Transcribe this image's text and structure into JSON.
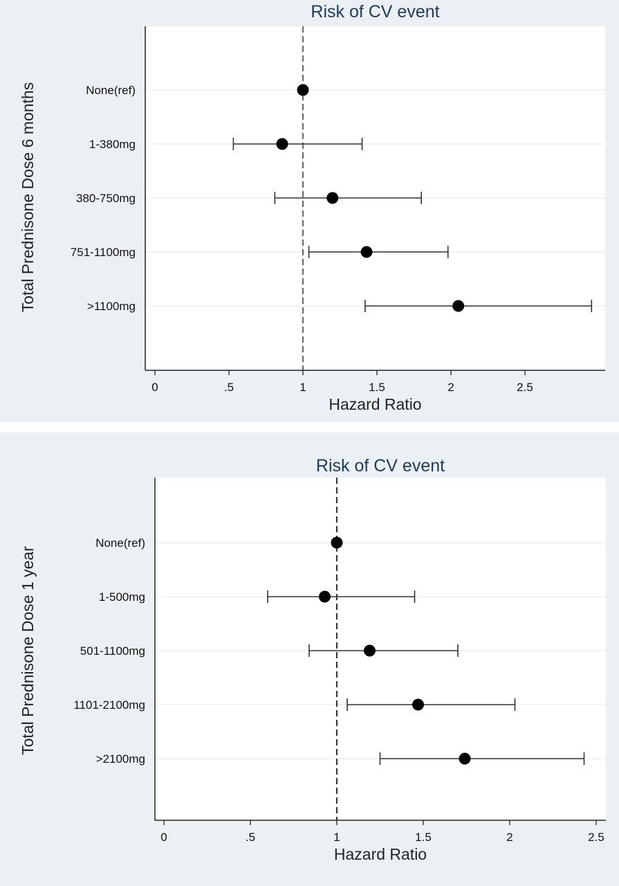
{
  "chart_data": [
    {
      "type": "scatter",
      "subtype": "forest-plot",
      "title": "Risk of CV event",
      "xlabel": "Hazard Ratio",
      "ylabel": "Total Prednisone Dose 6 months",
      "xlim": [
        0,
        3.0
      ],
      "xticks": [
        0,
        0.5,
        1,
        1.5,
        2,
        2.5
      ],
      "xtick_labels": [
        "0",
        ".5",
        "1",
        "1.5",
        "2",
        "2.5"
      ],
      "reference_line": 1,
      "grid": true,
      "categories": [
        "None(ref)",
        "1-380mg",
        "380-750mg",
        "751-1100mg",
        ">1100mg"
      ],
      "estimates": [
        1.0,
        0.86,
        1.2,
        1.43,
        2.05
      ],
      "lower": [
        null,
        0.53,
        0.81,
        1.04,
        1.42
      ],
      "upper": [
        null,
        1.4,
        1.8,
        1.98,
        2.95
      ]
    },
    {
      "type": "scatter",
      "subtype": "forest-plot",
      "title": "Risk of CV event",
      "xlabel": "Hazard Ratio",
      "ylabel": "Total Prednisone Dose 1 year",
      "xlim": [
        0,
        2.5
      ],
      "xticks": [
        0,
        0.5,
        1,
        1.5,
        2,
        2.5
      ],
      "xtick_labels": [
        "0",
        ".5",
        "1",
        "1.5",
        "2",
        "2.5"
      ],
      "reference_line": 1,
      "grid": true,
      "categories": [
        "None(ref)",
        "1-500mg",
        "501-1100mg",
        "1101-2100mg",
        ">2100mg"
      ],
      "estimates": [
        1.0,
        0.93,
        1.19,
        1.47,
        1.74
      ],
      "lower": [
        null,
        0.6,
        0.84,
        1.06,
        1.25
      ],
      "upper": [
        null,
        1.45,
        1.7,
        2.03,
        2.43
      ]
    }
  ]
}
